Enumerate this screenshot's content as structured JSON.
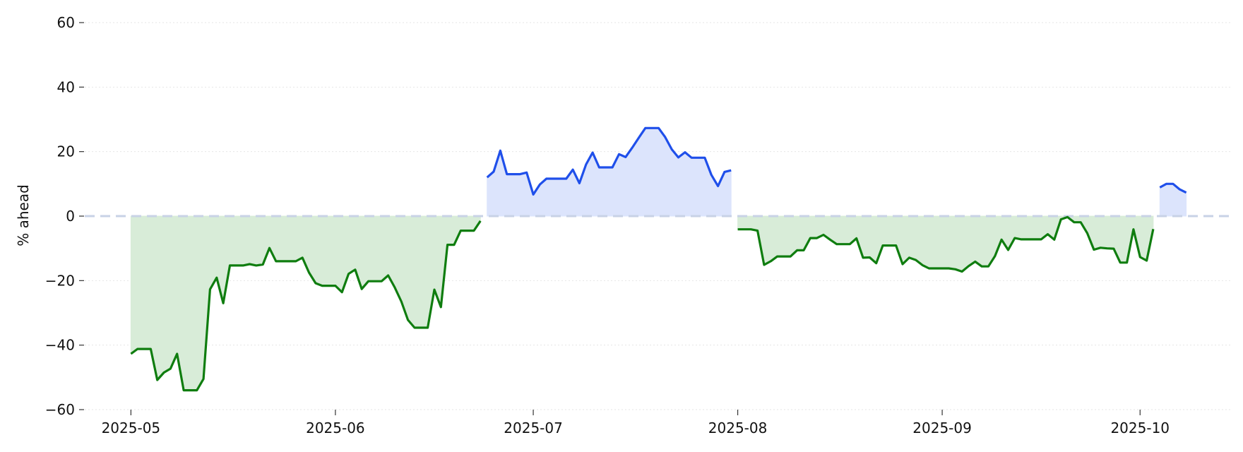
{
  "chart_data": {
    "type": "area",
    "ylabel": "% ahead",
    "ylim": [
      -60,
      60
    ],
    "xlim": [
      "2025-04-24",
      "2025-10-15"
    ],
    "y_ticks": [
      60,
      40,
      20,
      0,
      -20,
      -40,
      -60
    ],
    "y_tick_labels": [
      "60",
      "40",
      "20",
      "0",
      "−20",
      "−40",
      "−60"
    ],
    "x_ticks": [
      "2025-05-01",
      "2025-06-01",
      "2025-07-01",
      "2025-08-01",
      "2025-09-01",
      "2025-10-01"
    ],
    "x_tick_labels": [
      "2025-05",
      "2025-06",
      "2025-07",
      "2025-08",
      "2025-09",
      "2025-10"
    ],
    "grid": true,
    "zero_line": "dashed",
    "colors": {
      "negative_line": "#0f7d0f",
      "negative_fill": "#d8ecd8",
      "positive_line": "#1f4fea",
      "positive_fill": "#dce4fc",
      "zero_line": "#c8d2e6",
      "grid": "#e6e6e6"
    },
    "segments": [
      {
        "sign": "negative",
        "points": [
          [
            "2025-05-01",
            -42.7
          ],
          [
            "2025-05-02",
            -41.2
          ],
          [
            "2025-05-03",
            -41.2
          ],
          [
            "2025-05-04",
            -41.2
          ],
          [
            "2025-05-05",
            -50.8
          ],
          [
            "2025-05-06",
            -48.5
          ],
          [
            "2025-05-07",
            -47.3
          ],
          [
            "2025-05-08",
            -42.7
          ],
          [
            "2025-05-09",
            -54.0
          ],
          [
            "2025-05-10",
            -54.0
          ],
          [
            "2025-05-11",
            -54.0
          ],
          [
            "2025-05-12",
            -50.5
          ],
          [
            "2025-05-13",
            -22.7
          ],
          [
            "2025-05-14",
            -19.1
          ],
          [
            "2025-05-15",
            -27.0
          ],
          [
            "2025-05-16",
            -15.3
          ],
          [
            "2025-05-17",
            -15.3
          ],
          [
            "2025-05-18",
            -15.3
          ],
          [
            "2025-05-19",
            -14.9
          ],
          [
            "2025-05-20",
            -15.3
          ],
          [
            "2025-05-21",
            -15.0
          ],
          [
            "2025-05-22",
            -9.9
          ],
          [
            "2025-05-23",
            -14.0
          ],
          [
            "2025-05-24",
            -14.0
          ],
          [
            "2025-05-25",
            -14.0
          ],
          [
            "2025-05-26",
            -14.0
          ],
          [
            "2025-05-27",
            -12.9
          ],
          [
            "2025-05-28",
            -17.5
          ],
          [
            "2025-05-29",
            -20.8
          ],
          [
            "2025-05-30",
            -21.6
          ],
          [
            "2025-05-31",
            -21.6
          ],
          [
            "2025-06-01",
            -21.6
          ],
          [
            "2025-06-02",
            -23.6
          ],
          [
            "2025-06-03",
            -17.9
          ],
          [
            "2025-06-04",
            -16.6
          ],
          [
            "2025-06-05",
            -22.6
          ],
          [
            "2025-06-06",
            -20.2
          ],
          [
            "2025-06-07",
            -20.2
          ],
          [
            "2025-06-08",
            -20.2
          ],
          [
            "2025-06-09",
            -18.4
          ],
          [
            "2025-06-10",
            -22.1
          ],
          [
            "2025-06-11",
            -26.5
          ],
          [
            "2025-06-12",
            -32.2
          ],
          [
            "2025-06-13",
            -34.6
          ],
          [
            "2025-06-14",
            -34.6
          ],
          [
            "2025-06-15",
            -34.6
          ],
          [
            "2025-06-16",
            -22.8
          ],
          [
            "2025-06-17",
            -28.2
          ],
          [
            "2025-06-18",
            -8.9
          ],
          [
            "2025-06-19",
            -8.9
          ],
          [
            "2025-06-20",
            -4.5
          ],
          [
            "2025-06-21",
            -4.5
          ],
          [
            "2025-06-22",
            -4.5
          ],
          [
            "2025-06-23",
            -1.5
          ]
        ]
      },
      {
        "sign": "positive",
        "points": [
          [
            "2025-06-24",
            12.0
          ],
          [
            "2025-06-25",
            13.8
          ],
          [
            "2025-06-26",
            20.3
          ],
          [
            "2025-06-27",
            13.0
          ],
          [
            "2025-06-28",
            13.0
          ],
          [
            "2025-06-29",
            13.0
          ],
          [
            "2025-06-30",
            13.5
          ],
          [
            "2025-07-01",
            6.7
          ],
          [
            "2025-07-02",
            9.8
          ],
          [
            "2025-07-03",
            11.6
          ],
          [
            "2025-07-04",
            11.6
          ],
          [
            "2025-07-05",
            11.6
          ],
          [
            "2025-07-06",
            11.6
          ],
          [
            "2025-07-07",
            14.4
          ],
          [
            "2025-07-08",
            10.2
          ],
          [
            "2025-07-09",
            16.0
          ],
          [
            "2025-07-10",
            19.7
          ],
          [
            "2025-07-11",
            15.1
          ],
          [
            "2025-07-12",
            15.1
          ],
          [
            "2025-07-13",
            15.1
          ],
          [
            "2025-07-14",
            19.2
          ],
          [
            "2025-07-15",
            18.3
          ],
          [
            "2025-07-16",
            21.2
          ],
          [
            "2025-07-17",
            24.3
          ],
          [
            "2025-07-18",
            27.3
          ],
          [
            "2025-07-19",
            27.3
          ],
          [
            "2025-07-20",
            27.3
          ],
          [
            "2025-07-21",
            24.5
          ],
          [
            "2025-07-22",
            20.7
          ],
          [
            "2025-07-23",
            18.2
          ],
          [
            "2025-07-24",
            19.8
          ],
          [
            "2025-07-25",
            18.1
          ],
          [
            "2025-07-26",
            18.1
          ],
          [
            "2025-07-27",
            18.1
          ],
          [
            "2025-07-28",
            12.8
          ],
          [
            "2025-07-29",
            9.3
          ],
          [
            "2025-07-30",
            13.7
          ],
          [
            "2025-07-31",
            14.2
          ]
        ]
      },
      {
        "sign": "negative",
        "points": [
          [
            "2025-08-01",
            -4.1
          ],
          [
            "2025-08-02",
            -4.1
          ],
          [
            "2025-08-03",
            -4.1
          ],
          [
            "2025-08-04",
            -4.5
          ],
          [
            "2025-08-05",
            -15.1
          ],
          [
            "2025-08-06",
            -14.0
          ],
          [
            "2025-08-07",
            -12.5
          ],
          [
            "2025-08-08",
            -12.5
          ],
          [
            "2025-08-09",
            -12.5
          ],
          [
            "2025-08-10",
            -10.6
          ],
          [
            "2025-08-11",
            -10.6
          ],
          [
            "2025-08-12",
            -6.8
          ],
          [
            "2025-08-13",
            -6.8
          ],
          [
            "2025-08-14",
            -5.8
          ],
          [
            "2025-08-15",
            -7.3
          ],
          [
            "2025-08-16",
            -8.7
          ],
          [
            "2025-08-17",
            -8.7
          ],
          [
            "2025-08-18",
            -8.7
          ],
          [
            "2025-08-19",
            -6.9
          ],
          [
            "2025-08-20",
            -12.9
          ],
          [
            "2025-08-21",
            -12.8
          ],
          [
            "2025-08-22",
            -14.6
          ],
          [
            "2025-08-23",
            -9.1
          ],
          [
            "2025-08-24",
            -9.1
          ],
          [
            "2025-08-25",
            -9.1
          ],
          [
            "2025-08-26",
            -14.9
          ],
          [
            "2025-08-27",
            -12.9
          ],
          [
            "2025-08-28",
            -13.6
          ],
          [
            "2025-08-29",
            -15.2
          ],
          [
            "2025-08-30",
            -16.2
          ],
          [
            "2025-08-31",
            -16.2
          ],
          [
            "2025-09-01",
            -16.2
          ],
          [
            "2025-09-02",
            -16.2
          ],
          [
            "2025-09-03",
            -16.5
          ],
          [
            "2025-09-04",
            -17.2
          ],
          [
            "2025-09-05",
            -15.5
          ],
          [
            "2025-09-06",
            -14.1
          ],
          [
            "2025-09-07",
            -15.6
          ],
          [
            "2025-09-08",
            -15.6
          ],
          [
            "2025-09-09",
            -12.4
          ],
          [
            "2025-09-10",
            -7.3
          ],
          [
            "2025-09-11",
            -10.5
          ],
          [
            "2025-09-12",
            -6.8
          ],
          [
            "2025-09-13",
            -7.2
          ],
          [
            "2025-09-14",
            -7.2
          ],
          [
            "2025-09-15",
            -7.2
          ],
          [
            "2025-09-16",
            -7.2
          ],
          [
            "2025-09-17",
            -5.6
          ],
          [
            "2025-09-18",
            -7.3
          ],
          [
            "2025-09-19",
            -1.0
          ],
          [
            "2025-09-20",
            -0.3
          ],
          [
            "2025-09-21",
            -1.9
          ],
          [
            "2025-09-22",
            -1.9
          ],
          [
            "2025-09-23",
            -5.3
          ],
          [
            "2025-09-24",
            -10.4
          ],
          [
            "2025-09-25",
            -9.8
          ],
          [
            "2025-09-26",
            -10.0
          ],
          [
            "2025-09-27",
            -10.1
          ],
          [
            "2025-09-28",
            -14.4
          ],
          [
            "2025-09-29",
            -14.4
          ],
          [
            "2025-09-30",
            -4.1
          ],
          [
            "2025-10-01",
            -12.7
          ],
          [
            "2025-10-02",
            -13.8
          ],
          [
            "2025-10-03",
            -4.0
          ]
        ]
      },
      {
        "sign": "positive",
        "points": [
          [
            "2025-10-04",
            8.9
          ],
          [
            "2025-10-05",
            10.0
          ],
          [
            "2025-10-06",
            10.0
          ],
          [
            "2025-10-07",
            8.3
          ],
          [
            "2025-10-08",
            7.3
          ]
        ]
      }
    ]
  }
}
